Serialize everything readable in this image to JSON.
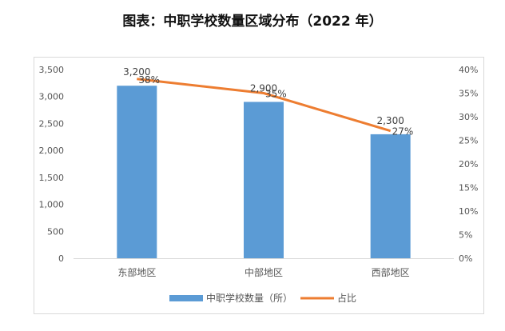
{
  "title": "图表：中职学校数量区域分布（2022 年）",
  "colors": {
    "bar": "#5b9bd5",
    "line": "#ed7d31"
  },
  "chart_data": {
    "type": "bar",
    "categories": [
      "东部地区",
      "中部地区",
      "西部地区"
    ],
    "series": [
      {
        "name": "中职学校数量（所）",
        "type": "bar",
        "axis": "left",
        "values": [
          3200,
          2900,
          2300
        ],
        "labels": [
          "3,200",
          "2,900",
          "2,300"
        ]
      },
      {
        "name": "占比",
        "type": "line",
        "axis": "right",
        "values": [
          38,
          35,
          27
        ],
        "labels": [
          "38%",
          "35%",
          "27%"
        ]
      }
    ],
    "y_left": {
      "min": 0,
      "max": 3500,
      "step": 500,
      "tick_labels": [
        "0",
        "500",
        "1,000",
        "1,500",
        "2,000",
        "2,500",
        "3,000",
        "3,500"
      ]
    },
    "y_right": {
      "min": 0,
      "max": 40,
      "step": 5,
      "tick_labels": [
        "0%",
        "5%",
        "10%",
        "15%",
        "20%",
        "25%",
        "30%",
        "35%",
        "40%"
      ]
    },
    "grid": false,
    "legend_position": "bottom"
  }
}
